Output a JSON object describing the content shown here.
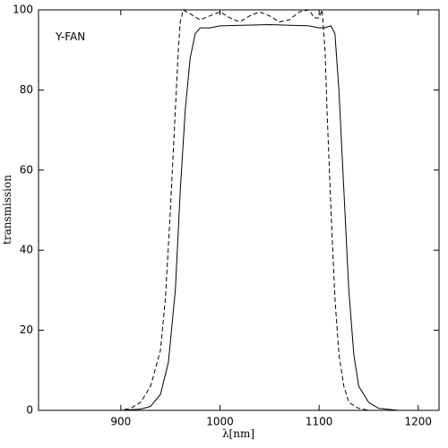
{
  "chart_data": {
    "type": "line",
    "annotation": "Y-FAN",
    "xlabel": "λ[nm]",
    "ylabel": "transmission",
    "xlim": [
      817,
      1221
    ],
    "ylim": [
      0,
      100
    ],
    "xticks": [
      900,
      1000,
      1100,
      1200
    ],
    "yticks": [
      0,
      20,
      40,
      60,
      80,
      100
    ],
    "grid": false,
    "series": [
      {
        "color": "#000000",
        "line_style": "solid",
        "x": [
          817,
          900,
          920,
          930,
          940,
          948,
          955,
          960,
          965,
          970,
          975,
          980,
          990,
          1000,
          1050,
          1090,
          1100,
          1105,
          1112,
          1116,
          1120,
          1125,
          1130,
          1135,
          1140,
          1150,
          1160,
          1180,
          1221
        ],
        "values": [
          0,
          0,
          0.3,
          1,
          4,
          12,
          30,
          55,
          75,
          88,
          94,
          95.5,
          95.5,
          96,
          96.3,
          96,
          95.5,
          95.5,
          96,
          94,
          80,
          55,
          30,
          14,
          6,
          2,
          0.5,
          0,
          0
        ]
      },
      {
        "color": "#000000",
        "line_style": "dashed",
        "x": [
          817,
          900,
          910,
          920,
          930,
          940,
          945,
          950,
          955,
          958,
          960,
          963,
          970,
          980,
          990,
          1000,
          1010,
          1020,
          1030,
          1040,
          1050,
          1060,
          1070,
          1080,
          1090,
          1095,
          1100,
          1103,
          1106,
          1108,
          1112,
          1116,
          1120,
          1125,
          1130,
          1140,
          1150,
          1221
        ],
        "values": [
          0,
          0,
          0.5,
          2,
          6,
          15,
          28,
          50,
          75,
          90,
          97,
          100,
          99,
          97.5,
          98.5,
          99.5,
          98,
          97,
          98.5,
          99.5,
          98.5,
          97,
          97.5,
          99.5,
          100,
          98,
          98,
          100,
          90,
          75,
          50,
          28,
          14,
          6,
          2,
          0.5,
          0,
          0
        ]
      }
    ]
  }
}
